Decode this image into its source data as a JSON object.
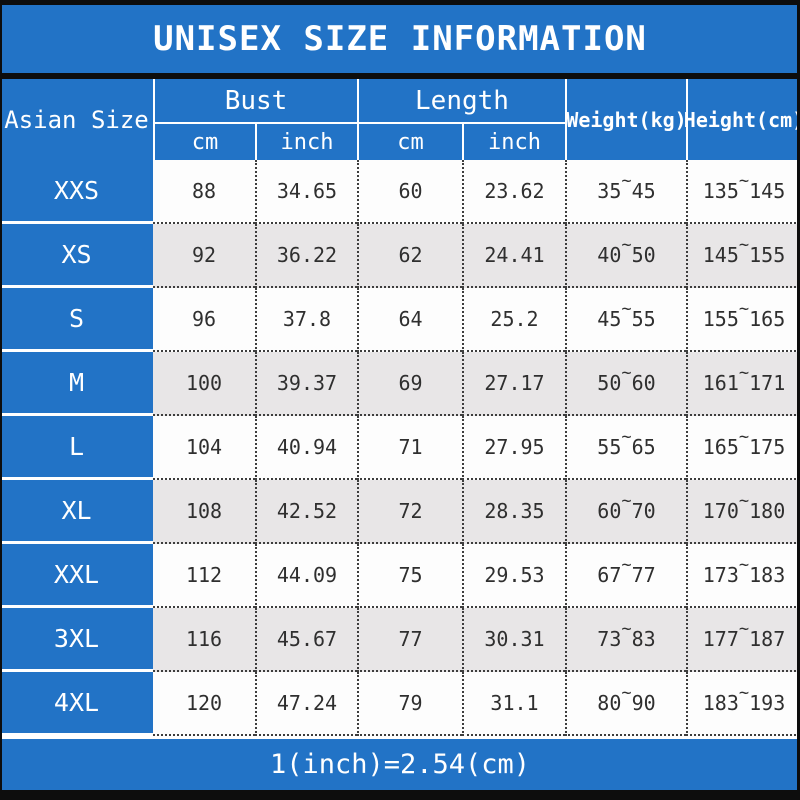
{
  "title": "UNISEX SIZE INFORMATION",
  "note": "1(inch)=2.54(cm)",
  "tilde": "~",
  "header": {
    "corner": "Asian Size",
    "bust": "Bust",
    "length": "Length",
    "cm": "cm",
    "inch": "inch",
    "weight": "Weight(kg)",
    "height": "Height(cm)"
  },
  "rows": [
    {
      "size": "XXS",
      "bust_cm": "88",
      "bust_inch": "34.65",
      "length_cm": "60",
      "length_inch": "23.62",
      "weight_min": "35",
      "weight_max": "45",
      "height_min": "135",
      "height_max": "145"
    },
    {
      "size": "XS",
      "bust_cm": "92",
      "bust_inch": "36.22",
      "length_cm": "62",
      "length_inch": "24.41",
      "weight_min": "40",
      "weight_max": "50",
      "height_min": "145",
      "height_max": "155"
    },
    {
      "size": "S",
      "bust_cm": "96",
      "bust_inch": "37.8",
      "length_cm": "64",
      "length_inch": "25.2",
      "weight_min": "45",
      "weight_max": "55",
      "height_min": "155",
      "height_max": "165"
    },
    {
      "size": "M",
      "bust_cm": "100",
      "bust_inch": "39.37",
      "length_cm": "69",
      "length_inch": "27.17",
      "weight_min": "50",
      "weight_max": "60",
      "height_min": "161",
      "height_max": "171"
    },
    {
      "size": "L",
      "bust_cm": "104",
      "bust_inch": "40.94",
      "length_cm": "71",
      "length_inch": "27.95",
      "weight_min": "55",
      "weight_max": "65",
      "height_min": "165",
      "height_max": "175"
    },
    {
      "size": "XL",
      "bust_cm": "108",
      "bust_inch": "42.52",
      "length_cm": "72",
      "length_inch": "28.35",
      "weight_min": "60",
      "weight_max": "70",
      "height_min": "170",
      "height_max": "180"
    },
    {
      "size": "XXL",
      "bust_cm": "112",
      "bust_inch": "44.09",
      "length_cm": "75",
      "length_inch": "29.53",
      "weight_min": "67",
      "weight_max": "77",
      "height_min": "173",
      "height_max": "183"
    },
    {
      "size": "3XL",
      "bust_cm": "116",
      "bust_inch": "45.67",
      "length_cm": "77",
      "length_inch": "30.31",
      "weight_min": "73",
      "weight_max": "83",
      "height_min": "177",
      "height_max": "187"
    },
    {
      "size": "4XL",
      "bust_cm": "120",
      "bust_inch": "47.24",
      "length_cm": "79",
      "length_inch": "31.1",
      "weight_min": "80",
      "weight_max": "90",
      "height_min": "183",
      "height_max": "193"
    }
  ],
  "colors": {
    "accent_blue": "#2273c6",
    "border_black": "#0d0d0d",
    "alt_row_gray": "#e8e6e7",
    "text_dark": "#2f2f2f"
  },
  "chart_data": {
    "type": "table",
    "title": "UNISEX SIZE INFORMATION",
    "columns": [
      "Asian Size",
      "Bust cm",
      "Bust inch",
      "Length cm",
      "Length inch",
      "Weight(kg)",
      "Height(cm)"
    ],
    "rows": [
      [
        "XXS",
        88,
        34.65,
        60,
        23.62,
        "35~45",
        "135~145"
      ],
      [
        "XS",
        92,
        36.22,
        62,
        24.41,
        "40~50",
        "145~155"
      ],
      [
        "S",
        96,
        37.8,
        64,
        25.2,
        "45~55",
        "155~165"
      ],
      [
        "M",
        100,
        39.37,
        69,
        27.17,
        "50~60",
        "161~171"
      ],
      [
        "L",
        104,
        40.94,
        71,
        27.95,
        "55~65",
        "165~175"
      ],
      [
        "XL",
        108,
        42.52,
        72,
        28.35,
        "60~70",
        "170~180"
      ],
      [
        "XXL",
        112,
        44.09,
        75,
        29.53,
        "67~77",
        "173~183"
      ],
      [
        "3XL",
        116,
        45.67,
        77,
        30.31,
        "73~83",
        "177~187"
      ],
      [
        "4XL",
        120,
        47.24,
        79,
        31.1,
        "80~90",
        "183~193"
      ]
    ],
    "note": "1(inch)=2.54(cm)"
  }
}
